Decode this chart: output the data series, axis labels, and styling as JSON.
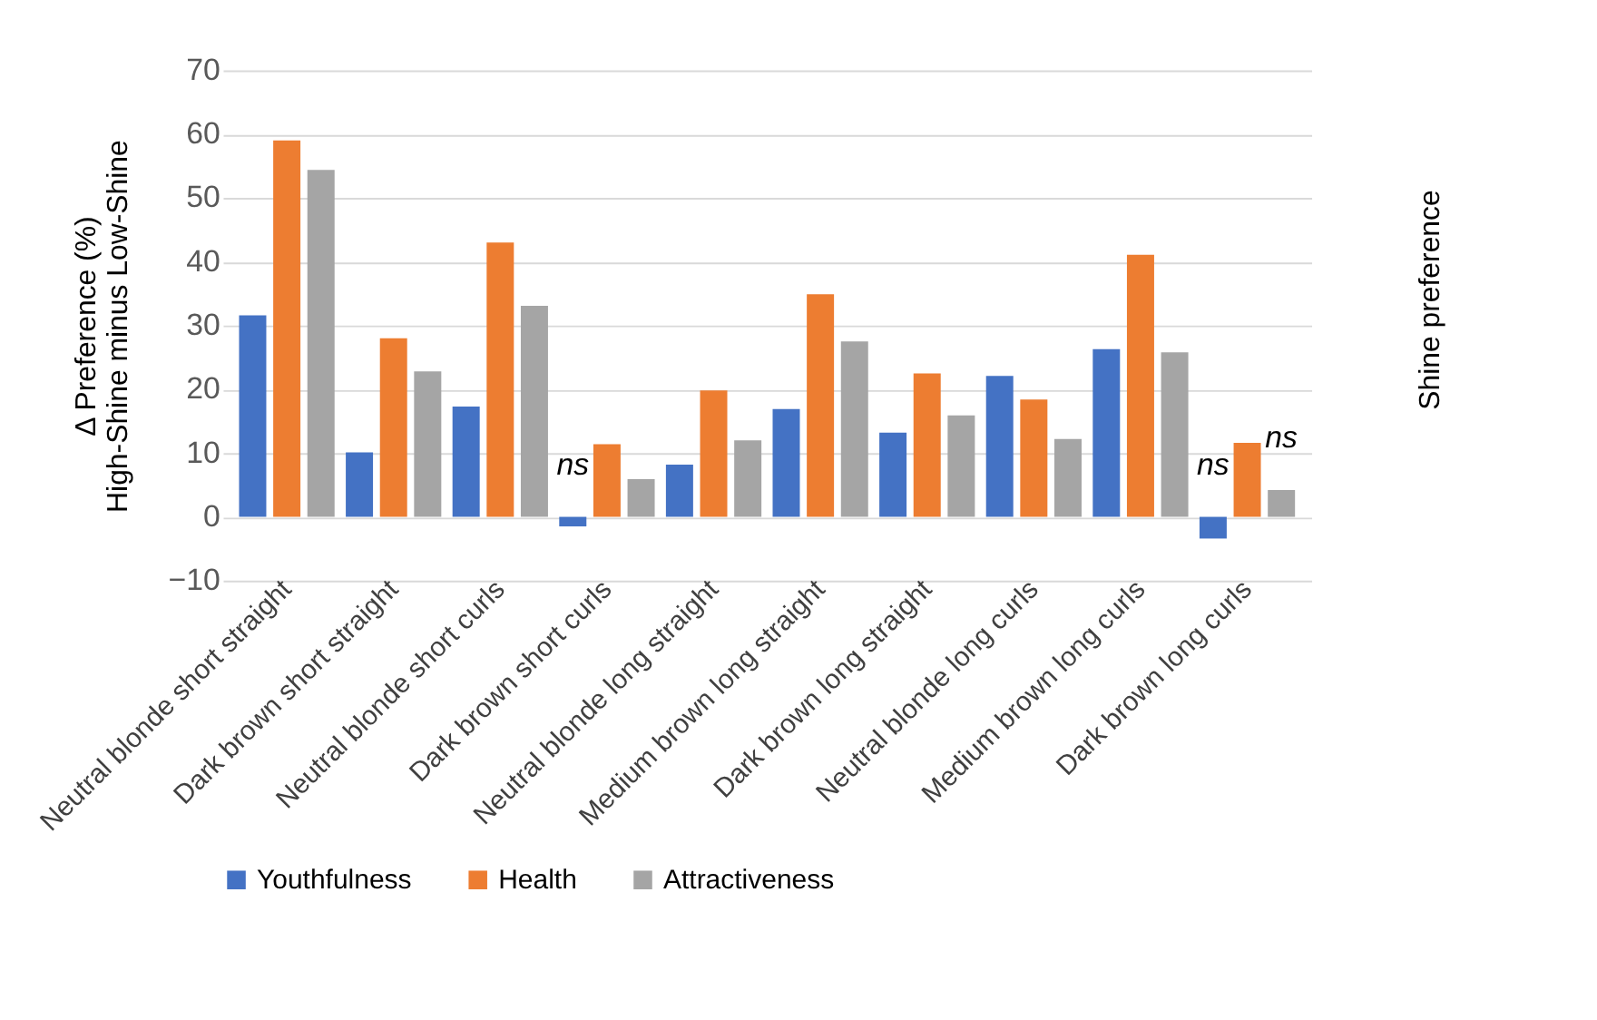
{
  "chart_data": {
    "type": "bar",
    "ylabel": "Δ Preference (%)\nHigh-Shine minus Low-Shine",
    "categories": [
      "Neutral blonde short straight",
      "Dark brown short straight",
      "Neutral blonde short curls",
      "Dark brown short curls",
      "Neutral blonde long straight",
      "Medium brown long straight",
      "Dark brown long straight",
      "Neutral blonde long curls",
      "Medium brown long curls",
      "Dark brown long curls"
    ],
    "series": [
      {
        "name": "Youthfulness",
        "color": "#4472c4",
        "values": [
          31.6,
          10.1,
          17.3,
          -1.5,
          8.2,
          16.9,
          13.2,
          22.1,
          26.3,
          -3.4
        ]
      },
      {
        "name": "Health",
        "color": "#ed7d31",
        "values": [
          59.0,
          28.0,
          43.0,
          11.4,
          19.8,
          34.9,
          22.5,
          18.4,
          41.1,
          11.6
        ]
      },
      {
        "name": "Attractiveness",
        "color": "#a5a5a5",
        "values": [
          54.4,
          22.8,
          33.1,
          5.9,
          12.0,
          27.5,
          15.9,
          12.2,
          25.8,
          4.2
        ]
      }
    ],
    "ylim": [
      -10,
      70
    ],
    "yticks": [
      -10,
      0,
      10,
      20,
      30,
      40,
      50,
      60,
      70
    ],
    "grid": "y",
    "legend": "bottom",
    "annotations": [
      "ns",
      "ns",
      "ns",
      "Shine preference"
    ]
  }
}
